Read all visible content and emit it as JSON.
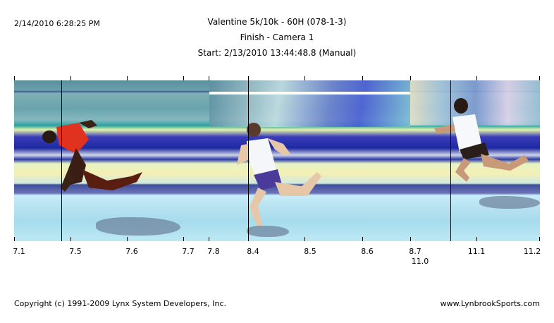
{
  "header": {
    "timestamp": "2/14/2010 6:28:25 PM",
    "event_title": "Valentine 5k/10k - 60H (078-1-3)",
    "camera": "Finish - Camera 1",
    "start": "Start: 2/13/2010 13:44:48.8 (Manual)"
  },
  "time_axis": {
    "labels": [
      "7.1",
      "7.5",
      "7.6",
      "7.7",
      "7.8",
      "8.4",
      "8.5",
      "8.6",
      "8.7",
      "11.1",
      "11.2"
    ],
    "sublabel": "11.0"
  },
  "footer": {
    "copyright": "Copyright (c) 1991-2009 Lynx System Developers, Inc.",
    "website": "www.LynbrookSports.com"
  }
}
